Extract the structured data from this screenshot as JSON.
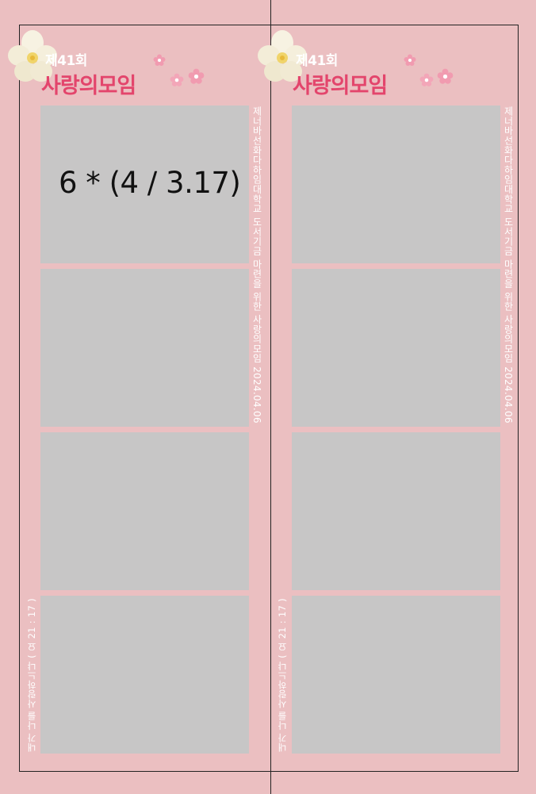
{
  "event": {
    "episode": "제41회",
    "title": "사랑의모임",
    "side_caption": "제너바선화다하임대학교 도서기금 마련을 위한 사랑의모임   2024.04.06",
    "bottom_caption": "내가 나를 사랑하느냐 ( 요 21 : 17 )"
  },
  "annotation": {
    "formula": "6 * (4 / 3.17)"
  },
  "colors": {
    "background": "#ebbfc1",
    "title": "#e3456c",
    "photo_placeholder": "#c7c6c6",
    "caption_text": "#ffffff"
  },
  "icons": [
    "flower-icon",
    "blossom-icon"
  ]
}
